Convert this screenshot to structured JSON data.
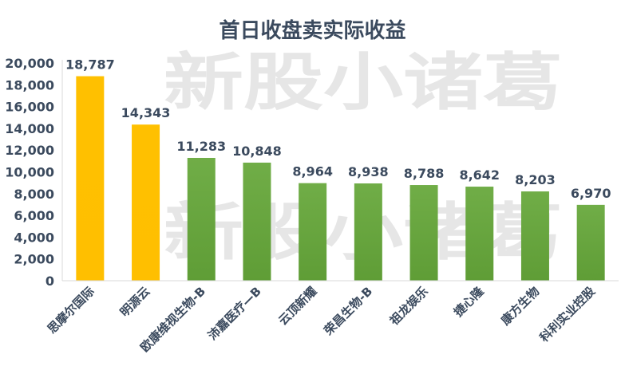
{
  "chart_data": {
    "type": "bar",
    "title": "首日收盘卖实际收益",
    "xlabel": "",
    "ylabel": "",
    "ylim": [
      0,
      20000
    ],
    "yticks": [
      0,
      2000,
      4000,
      6000,
      8000,
      10000,
      12000,
      14000,
      16000,
      18000,
      20000
    ],
    "ytick_labels": [
      "0",
      "2,000",
      "4,000",
      "6,000",
      "8,000",
      "10,000",
      "12,000",
      "14,000",
      "16,000",
      "18,000",
      "20,000"
    ],
    "grid": false,
    "legend": "none",
    "categories": [
      "思摩尔国际",
      "明源云",
      "欧康维视生物-B",
      "沛嘉医疗—B",
      "云顶新耀",
      "荣昌生物-B",
      "祖龙娱乐",
      "捷心隆",
      "康方生物",
      "科利实业控股"
    ],
    "values": [
      18787,
      14343,
      11283,
      10848,
      8964,
      8938,
      8788,
      8642,
      8203,
      6970
    ],
    "value_labels": [
      "18,787",
      "14,343",
      "11,283",
      "10,848",
      "8,964",
      "8,938",
      "8,788",
      "8,642",
      "8,203",
      "6,970"
    ],
    "bar_colors": [
      "#ffc000",
      "#ffc000",
      "#70ad47",
      "#70ad47",
      "#70ad47",
      "#70ad47",
      "#70ad47",
      "#70ad47",
      "#70ad47",
      "#70ad47"
    ],
    "watermark": [
      "新股小诸葛",
      "新股小诸葛"
    ]
  }
}
